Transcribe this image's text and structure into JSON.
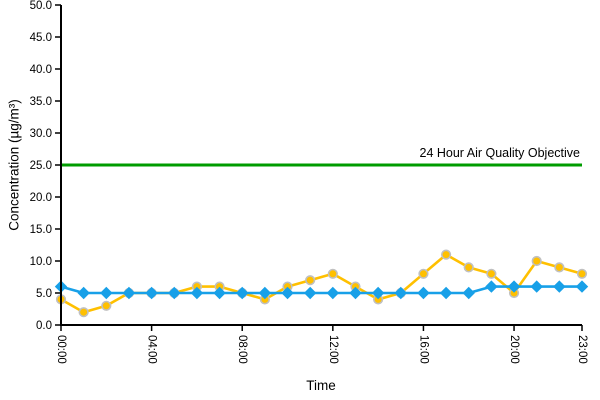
{
  "chart_data": {
    "type": "line",
    "title": "",
    "xlabel": "Time",
    "ylabel": "Concentration (µg/m³)",
    "grid": false,
    "legend": "none",
    "ylim": [
      0,
      50
    ],
    "y_tick_step": 5,
    "y_tick_labels": [
      "0.0",
      "5.0",
      "10.0",
      "15.0",
      "20.0",
      "25.0",
      "30.0",
      "35.0",
      "40.0",
      "45.0",
      "50.0"
    ],
    "x_tick_labels": [
      "00:00",
      "04:00",
      "08:00",
      "12:00",
      "16:00",
      "20:00",
      "23:00"
    ],
    "x_tick_hours": [
      0,
      4,
      8,
      12,
      16,
      20,
      23
    ],
    "x_hours_range": [
      0,
      23
    ],
    "reference_line": {
      "value": 25,
      "label": "24 Hour Air Quality Objective",
      "color": "#009C00"
    },
    "series": [
      {
        "name": "hourly-concentration-yellow",
        "color": "#FFC000",
        "marker": "circle",
        "marker_outline": "#C0C0C0",
        "values": [
          4,
          2,
          3,
          5,
          5,
          5,
          6,
          6,
          5,
          4,
          6,
          7,
          8,
          6,
          4,
          5,
          8,
          11,
          9,
          8,
          5,
          10,
          9,
          8
        ]
      },
      {
        "name": "hourly-concentration-blue",
        "color": "#18A0E8",
        "marker": "diamond",
        "marker_outline": "#18A0E8",
        "values": [
          6,
          5,
          5,
          5,
          5,
          5,
          5,
          5,
          5,
          5,
          5,
          5,
          5,
          5,
          5,
          5,
          5,
          5,
          5,
          6,
          6,
          6,
          6,
          6
        ]
      }
    ],
    "axis_color": "#000000"
  }
}
